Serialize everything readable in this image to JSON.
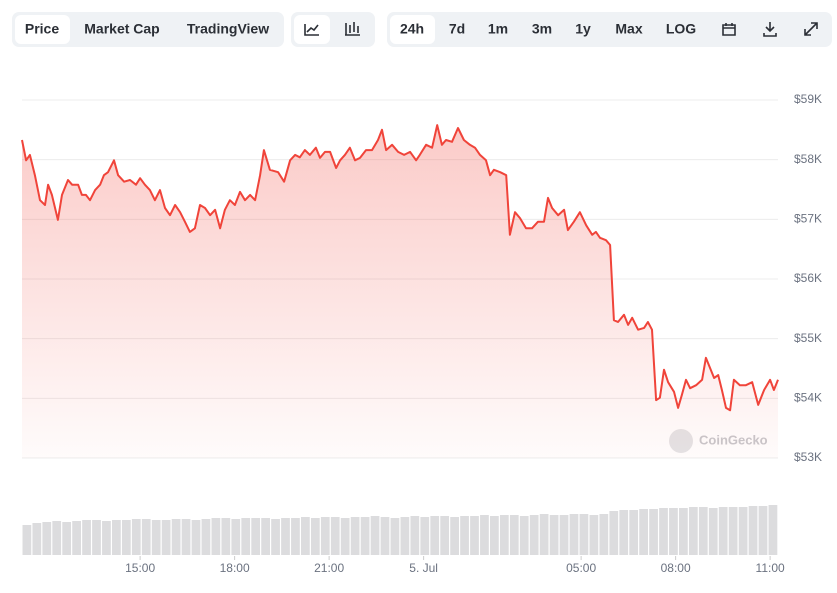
{
  "toolbar": {
    "tabs": [
      "Price",
      "Market Cap",
      "TradingView"
    ],
    "ranges": [
      "24h",
      "7d",
      "1m",
      "3m",
      "1y",
      "Max",
      "LOG"
    ]
  },
  "chart_data": {
    "type": "line",
    "color": "#f0443a",
    "grid": true,
    "watermark": "CoinGecko",
    "xlim": [
      -12.75,
      11.25
    ],
    "xticks": [
      {
        "value": -9,
        "label": "15:00"
      },
      {
        "value": -6,
        "label": "18:00"
      },
      {
        "value": -3,
        "label": "21:00"
      },
      {
        "value": 0,
        "label": "5. Jul"
      },
      {
        "value": 5,
        "label": "05:00"
      },
      {
        "value": 8,
        "label": "08:00"
      },
      {
        "value": 11,
        "label": "11:00"
      }
    ],
    "ylim": [
      53000,
      59000
    ],
    "yticks": [
      {
        "value": 53000,
        "label": "$53K"
      },
      {
        "value": 54000,
        "label": "$54K"
      },
      {
        "value": 55000,
        "label": "$55K"
      },
      {
        "value": 56000,
        "label": "$56K"
      },
      {
        "value": 57000,
        "label": "$57K"
      },
      {
        "value": 58000,
        "label": "$58K"
      },
      {
        "value": 59000,
        "label": "$59K"
      }
    ],
    "x": [
      -12.75,
      -12.62,
      -12.5,
      -12.34,
      -12.18,
      -12.02,
      -11.92,
      -11.8,
      -11.61,
      -11.48,
      -11.29,
      -11.16,
      -10.97,
      -10.85,
      -10.72,
      -10.59,
      -10.43,
      -10.27,
      -10.15,
      -10.02,
      -9.83,
      -9.7,
      -9.51,
      -9.32,
      -9.13,
      -9,
      -8.85,
      -8.69,
      -8.53,
      -8.37,
      -8.21,
      -8.05,
      -7.89,
      -7.73,
      -7.58,
      -7.42,
      -7.26,
      -7.1,
      -6.94,
      -6.78,
      -6.62,
      -6.46,
      -6.31,
      -6.15,
      -5.99,
      -5.83,
      -5.67,
      -5.51,
      -5.35,
      -5.19,
      -5.07,
      -4.88,
      -4.62,
      -4.43,
      -4.24,
      -4.08,
      -3.93,
      -3.77,
      -3.61,
      -3.42,
      -3.29,
      -3.13,
      -2.97,
      -2.78,
      -2.65,
      -2.5,
      -2.34,
      -2.18,
      -2.02,
      -1.83,
      -1.64,
      -1.45,
      -1.32,
      -1.19,
      -1,
      -0.81,
      -0.62,
      -0.43,
      -0.24,
      -0.12,
      0.08,
      0.27,
      0.43,
      0.58,
      0.71,
      0.9,
      1.09,
      1.28,
      1.47,
      1.63,
      1.79,
      1.98,
      2.11,
      2.23,
      2.43,
      2.62,
      2.74,
      2.9,
      3.06,
      3.25,
      3.44,
      3.63,
      3.82,
      3.95,
      4.08,
      4.27,
      4.46,
      4.58,
      4.77,
      4.96,
      5.16,
      5.35,
      5.47,
      5.6,
      5.79,
      5.92,
      6.04,
      6.17,
      6.36,
      6.49,
      6.62,
      6.81,
      7,
      7.12,
      7.25,
      7.38,
      7.5,
      7.63,
      7.76,
      7.95,
      8.08,
      8.2,
      8.33,
      8.46,
      8.65,
      8.84,
      8.96,
      9.09,
      9.22,
      9.35,
      9.47,
      9.6,
      9.73,
      9.85,
      10.04,
      10.23,
      10.43,
      10.62,
      10.81,
      11,
      11.12,
      11.25
    ],
    "values": [
      58330,
      57990,
      58080,
      57740,
      57320,
      57240,
      57580,
      57410,
      56990,
      57410,
      57660,
      57580,
      57580,
      57410,
      57410,
      57320,
      57490,
      57580,
      57740,
      57790,
      57990,
      57740,
      57630,
      57660,
      57580,
      57690,
      57580,
      57490,
      57320,
      57490,
      57190,
      57070,
      57240,
      57120,
      56960,
      56790,
      56850,
      57240,
      57190,
      57070,
      57160,
      56850,
      57160,
      57320,
      57240,
      57460,
      57320,
      57410,
      57320,
      57740,
      58160,
      57830,
      57790,
      57630,
      57990,
      58080,
      58040,
      58160,
      58080,
      58200,
      58030,
      58130,
      58130,
      57860,
      57990,
      58080,
      58200,
      57990,
      58030,
      58160,
      58160,
      58330,
      58500,
      58160,
      58250,
      58130,
      58080,
      58130,
      57990,
      58080,
      58250,
      58200,
      58580,
      58250,
      58330,
      58300,
      58530,
      58330,
      58250,
      58200,
      58080,
      57990,
      57740,
      57830,
      57790,
      57740,
      56740,
      57120,
      57020,
      56850,
      56850,
      56960,
      56960,
      57360,
      57190,
      57070,
      57160,
      56820,
      56960,
      57120,
      56900,
      56740,
      56790,
      56690,
      56650,
      56570,
      55310,
      55280,
      55400,
      55230,
      55350,
      55150,
      55180,
      55280,
      55150,
      53970,
      54010,
      54480,
      54270,
      54110,
      53840,
      54060,
      54310,
      54170,
      54220,
      54310,
      54680,
      54510,
      54340,
      54390,
      54140,
      53840,
      53800,
      54310,
      54220,
      54220,
      54270,
      53890,
      54140,
      54310,
      54140,
      54310
    ],
    "volume": {
      "color": "#dcdcde",
      "ylim": [
        0,
        50
      ],
      "values": [
        30,
        32,
        33,
        34,
        33,
        34,
        35,
        35,
        34,
        35,
        35,
        36,
        36,
        35,
        35,
        36,
        36,
        35,
        36,
        37,
        37,
        36,
        37,
        37,
        37,
        36,
        37,
        37,
        38,
        37,
        38,
        38,
        37,
        38,
        38,
        39,
        38,
        37,
        38,
        39,
        38,
        39,
        39,
        38,
        39,
        39,
        40,
        39,
        40,
        40,
        39,
        40,
        41,
        40,
        40,
        41,
        41,
        40,
        41,
        44,
        45,
        45,
        46,
        46,
        47,
        47,
        47,
        48,
        48,
        47,
        48,
        48,
        48,
        49,
        49,
        50
      ]
    }
  }
}
